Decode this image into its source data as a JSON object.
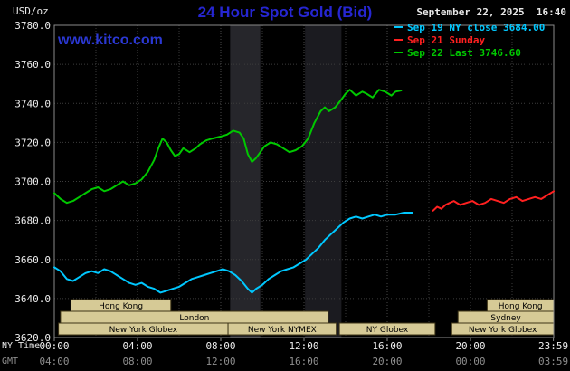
{
  "header": {
    "units_label": "USD/oz",
    "title": "24 Hour Spot Gold (Bid)",
    "datetime": "September 22, 2025  16:40",
    "watermark": "www.kitco.com",
    "legend": [
      {
        "label": "Sep 19 NY close 3684.00",
        "color": "#00c8ff"
      },
      {
        "label": "Sep 21 Sunday",
        "color": "#ff2020"
      },
      {
        "label": "Sep 22 Last 3746.60",
        "color": "#00c800"
      }
    ]
  },
  "axis": {
    "ny_time_label": "NY Time",
    "gmt_label": "GMT",
    "x_tick_hours": [
      0,
      4,
      8,
      12,
      16,
      20,
      23.983
    ],
    "x_ticks_ny": [
      "00:00",
      "04:00",
      "08:00",
      "12:00",
      "16:00",
      "20:00",
      "23:59"
    ],
    "x_ticks_gmt": [
      "04:00",
      "08:00",
      "12:00",
      "16:00",
      "20:00",
      "00:00",
      "03:59"
    ],
    "y_ticks": [
      3620,
      3640,
      3660,
      3680,
      3700,
      3720,
      3740,
      3760,
      3780
    ]
  },
  "chart_data": {
    "type": "line",
    "title": "24 Hour Spot Gold (Bid)",
    "ylabel": "USD/oz",
    "ylim": [
      3620,
      3780
    ],
    "xlim_hours": [
      0,
      24
    ],
    "grid": true,
    "background": "#000000",
    "session_fill": "#d6ca96",
    "session_border": "#3e3416",
    "ny_close": 3684.0,
    "last": 3746.6,
    "bands": [
      {
        "start": 8.45,
        "end": 9.9,
        "color": "#26262b"
      },
      {
        "start": 12.05,
        "end": 13.8,
        "color": "#1b1b20"
      }
    ],
    "series": [
      {
        "id": "sep19",
        "name": "Sep 19",
        "color": "#00c8ff",
        "points": [
          [
            0,
            3656
          ],
          [
            0.3,
            3654
          ],
          [
            0.6,
            3650
          ],
          [
            0.9,
            3649
          ],
          [
            1.2,
            3651
          ],
          [
            1.5,
            3653
          ],
          [
            1.8,
            3654
          ],
          [
            2.1,
            3653
          ],
          [
            2.4,
            3655
          ],
          [
            2.7,
            3654
          ],
          [
            3,
            3652
          ],
          [
            3.3,
            3650
          ],
          [
            3.6,
            3648
          ],
          [
            3.9,
            3647
          ],
          [
            4.2,
            3648
          ],
          [
            4.5,
            3646
          ],
          [
            4.8,
            3645
          ],
          [
            5.1,
            3643
          ],
          [
            5.4,
            3644
          ],
          [
            5.7,
            3645
          ],
          [
            6,
            3646
          ],
          [
            6.3,
            3648
          ],
          [
            6.6,
            3650
          ],
          [
            6.9,
            3651
          ],
          [
            7.2,
            3652
          ],
          [
            7.5,
            3653
          ],
          [
            7.8,
            3654
          ],
          [
            8.1,
            3655
          ],
          [
            8.4,
            3654
          ],
          [
            8.7,
            3652
          ],
          [
            9,
            3649
          ],
          [
            9.3,
            3645
          ],
          [
            9.5,
            3643
          ],
          [
            9.7,
            3645
          ],
          [
            10,
            3647
          ],
          [
            10.3,
            3650
          ],
          [
            10.6,
            3652
          ],
          [
            10.9,
            3654
          ],
          [
            11.2,
            3655
          ],
          [
            11.5,
            3656
          ],
          [
            11.8,
            3658
          ],
          [
            12.1,
            3660
          ],
          [
            12.4,
            3663
          ],
          [
            12.7,
            3666
          ],
          [
            13,
            3670
          ],
          [
            13.3,
            3673
          ],
          [
            13.6,
            3676
          ],
          [
            13.9,
            3679
          ],
          [
            14.2,
            3681
          ],
          [
            14.5,
            3682
          ],
          [
            14.8,
            3681
          ],
          [
            15.1,
            3682
          ],
          [
            15.4,
            3683
          ],
          [
            15.7,
            3682
          ],
          [
            16,
            3683
          ],
          [
            16.4,
            3683
          ],
          [
            16.8,
            3684
          ],
          [
            17.2,
            3684
          ]
        ]
      },
      {
        "id": "sep21",
        "name": "Sep 21",
        "color": "#ff2020",
        "points": [
          [
            18.2,
            3685
          ],
          [
            18.4,
            3687
          ],
          [
            18.6,
            3686
          ],
          [
            18.8,
            3688
          ],
          [
            19,
            3689
          ],
          [
            19.2,
            3690
          ],
          [
            19.5,
            3688
          ],
          [
            19.8,
            3689
          ],
          [
            20.1,
            3690
          ],
          [
            20.4,
            3688
          ],
          [
            20.7,
            3689
          ],
          [
            21,
            3691
          ],
          [
            21.3,
            3690
          ],
          [
            21.6,
            3689
          ],
          [
            21.9,
            3691
          ],
          [
            22.2,
            3692
          ],
          [
            22.5,
            3690
          ],
          [
            22.8,
            3691
          ],
          [
            23.1,
            3692
          ],
          [
            23.4,
            3691
          ],
          [
            23.7,
            3693
          ],
          [
            24,
            3695
          ]
        ]
      },
      {
        "id": "sep22",
        "name": "Sep 22",
        "color": "#00c800",
        "points": [
          [
            0,
            3694
          ],
          [
            0.3,
            3691
          ],
          [
            0.6,
            3689
          ],
          [
            0.9,
            3690
          ],
          [
            1.2,
            3692
          ],
          [
            1.5,
            3694
          ],
          [
            1.8,
            3696
          ],
          [
            2.1,
            3697
          ],
          [
            2.4,
            3695
          ],
          [
            2.7,
            3696
          ],
          [
            3,
            3698
          ],
          [
            3.3,
            3700
          ],
          [
            3.6,
            3698
          ],
          [
            3.9,
            3699
          ],
          [
            4.2,
            3701
          ],
          [
            4.5,
            3705
          ],
          [
            4.8,
            3711
          ],
          [
            5,
            3717
          ],
          [
            5.2,
            3722
          ],
          [
            5.4,
            3720
          ],
          [
            5.6,
            3716
          ],
          [
            5.8,
            3713
          ],
          [
            6,
            3714
          ],
          [
            6.2,
            3717
          ],
          [
            6.5,
            3715
          ],
          [
            6.8,
            3717
          ],
          [
            7,
            3719
          ],
          [
            7.3,
            3721
          ],
          [
            7.6,
            3722
          ],
          [
            8,
            3723
          ],
          [
            8.3,
            3724
          ],
          [
            8.6,
            3726
          ],
          [
            8.9,
            3725
          ],
          [
            9.1,
            3722
          ],
          [
            9.3,
            3714
          ],
          [
            9.5,
            3710
          ],
          [
            9.7,
            3712
          ],
          [
            9.9,
            3715
          ],
          [
            10.1,
            3718
          ],
          [
            10.4,
            3720
          ],
          [
            10.7,
            3719
          ],
          [
            11,
            3717
          ],
          [
            11.3,
            3715
          ],
          [
            11.6,
            3716
          ],
          [
            11.9,
            3718
          ],
          [
            12.2,
            3722
          ],
          [
            12.5,
            3730
          ],
          [
            12.8,
            3736
          ],
          [
            13,
            3738
          ],
          [
            13.2,
            3736
          ],
          [
            13.5,
            3738
          ],
          [
            13.8,
            3742
          ],
          [
            14,
            3745
          ],
          [
            14.2,
            3747
          ],
          [
            14.5,
            3744
          ],
          [
            14.8,
            3746
          ],
          [
            15,
            3745
          ],
          [
            15.3,
            3743
          ],
          [
            15.6,
            3747
          ],
          [
            15.9,
            3746
          ],
          [
            16.2,
            3744
          ],
          [
            16.4,
            3746
          ],
          [
            16.67,
            3746.6
          ]
        ]
      }
    ],
    "sessions": [
      {
        "row": 0,
        "start": 0.8,
        "end": 5.6,
        "label": "Hong Kong"
      },
      {
        "row": 0,
        "start": 20.8,
        "end": 24,
        "label": "Hong Kong"
      },
      {
        "row": 1,
        "start": 0.3,
        "end": 13.17,
        "label": "London"
      },
      {
        "row": 1,
        "start": 19.4,
        "end": 24,
        "label": "Sydney"
      },
      {
        "row": 2,
        "start": 0.2,
        "end": 8.35,
        "label": "New York Globex"
      },
      {
        "row": 2,
        "start": 8.35,
        "end": 13.55,
        "label": "New York NYMEX"
      },
      {
        "row": 2,
        "start": 13.7,
        "end": 18.3,
        "label": "NY Globex"
      },
      {
        "row": 2,
        "start": 19.1,
        "end": 24,
        "label": "New York Globex"
      }
    ]
  }
}
